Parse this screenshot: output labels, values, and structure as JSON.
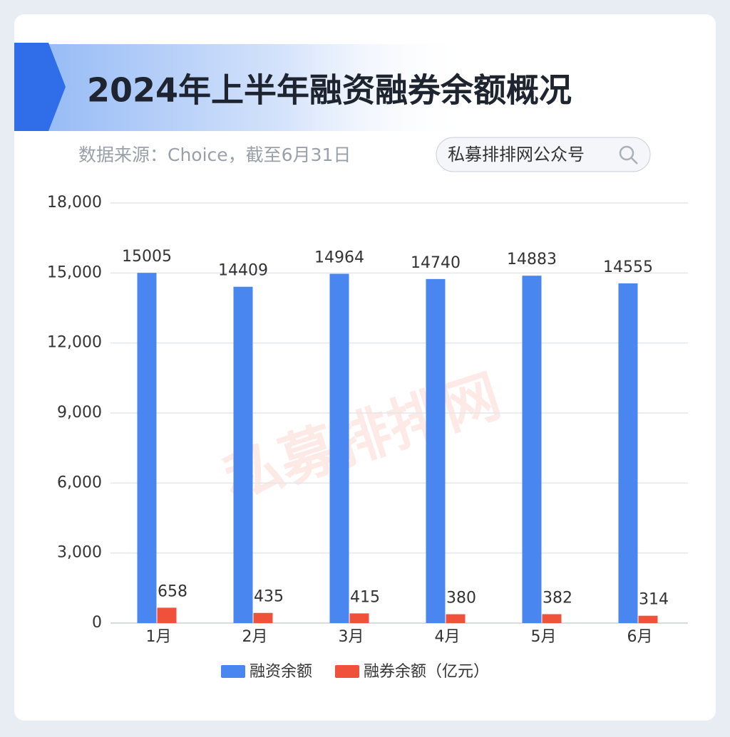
{
  "header": {
    "title": "2024年上半年融资融券余额概况",
    "subtitle": "数据来源：Choice，截至6月31日",
    "search": "私募排排网公众号"
  },
  "chart_data": {
    "type": "bar",
    "watermark": "私募排排网",
    "categories": [
      "1月",
      "2月",
      "3月",
      "4月",
      "5月",
      "6月"
    ],
    "series": [
      {
        "name": "融资余额",
        "color": "#4a86f0",
        "values": [
          15005,
          14409,
          14964,
          14740,
          14883,
          14555
        ]
      },
      {
        "name": "融券余额（亿元）",
        "color": "#f0513a",
        "values": [
          658,
          435,
          415,
          380,
          382,
          314
        ]
      }
    ],
    "ylim": [
      0,
      18000
    ],
    "yticks": [
      0,
      {
        "value": 3000,
        "label": "3,000"
      },
      {
        "value": 6000,
        "label": "6,000"
      },
      {
        "value": 9000,
        "label": "9,000"
      },
      {
        "value": 12000,
        "label": "12,000"
      },
      {
        "value": 15000,
        "label": "15,000"
      },
      {
        "value": 18000,
        "label": "18,000"
      }
    ],
    "grid": true,
    "legend": "bottom"
  }
}
